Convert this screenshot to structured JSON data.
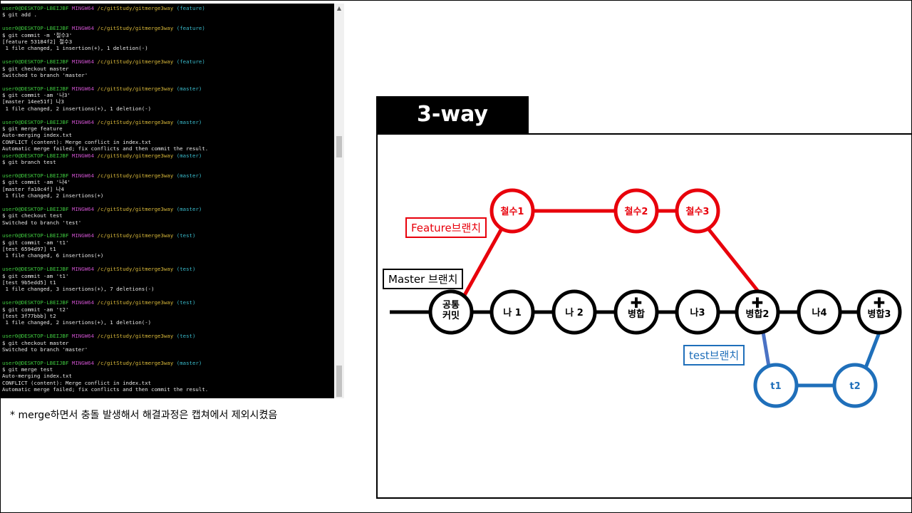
{
  "terminal": {
    "lines": [
      [
        {
          "t": "user",
          "v": "user0@DESKTOP-LBEIJBF "
        },
        {
          "t": "mingw",
          "v": "MINGW64 "
        },
        {
          "t": "path",
          "v": "/c/gitStudy/gitmerge3way "
        },
        {
          "t": "branch",
          "v": "(feature)"
        }
      ],
      [
        {
          "t": "text",
          "v": "$ git add ."
        }
      ],
      [],
      [
        {
          "t": "user",
          "v": "user0@DESKTOP-LBEIJBF "
        },
        {
          "t": "mingw",
          "v": "MINGW64 "
        },
        {
          "t": "path",
          "v": "/c/gitStudy/gitmerge3way "
        },
        {
          "t": "branch",
          "v": "(feature)"
        }
      ],
      [
        {
          "t": "text",
          "v": "$ git commit -m '철수3'"
        }
      ],
      [
        {
          "t": "text",
          "v": "[feature 53184f2] 철수3"
        }
      ],
      [
        {
          "t": "text",
          "v": " 1 file changed, 1 insertion(+), 1 deletion(-)"
        }
      ],
      [],
      [
        {
          "t": "user",
          "v": "user0@DESKTOP-LBEIJBF "
        },
        {
          "t": "mingw",
          "v": "MINGW64 "
        },
        {
          "t": "path",
          "v": "/c/gitStudy/gitmerge3way "
        },
        {
          "t": "branch",
          "v": "(feature)"
        }
      ],
      [
        {
          "t": "text",
          "v": "$ git checkout master"
        }
      ],
      [
        {
          "t": "text",
          "v": "Switched to branch 'master'"
        }
      ],
      [],
      [
        {
          "t": "user",
          "v": "user0@DESKTOP-LBEIJBF "
        },
        {
          "t": "mingw",
          "v": "MINGW64 "
        },
        {
          "t": "path",
          "v": "/c/gitStudy/gitmerge3way "
        },
        {
          "t": "branch",
          "v": "(master)"
        }
      ],
      [
        {
          "t": "text",
          "v": "$ git commit -am '나3'"
        }
      ],
      [
        {
          "t": "text",
          "v": "[master 14ee51f] 나3"
        }
      ],
      [
        {
          "t": "text",
          "v": " 1 file changed, 2 insertions(+), 1 deletion(-)"
        }
      ],
      [],
      [
        {
          "t": "user",
          "v": "user0@DESKTOP-LBEIJBF "
        },
        {
          "t": "mingw",
          "v": "MINGW64 "
        },
        {
          "t": "path",
          "v": "/c/gitStudy/gitmerge3way "
        },
        {
          "t": "branch",
          "v": "(master)"
        }
      ],
      [
        {
          "t": "text",
          "v": "$ git merge feature"
        }
      ],
      [
        {
          "t": "text",
          "v": "Auto-merging index.txt"
        }
      ],
      [
        {
          "t": "text",
          "v": "CONFLICT (content): Merge conflict in index.txt"
        }
      ],
      [
        {
          "t": "text",
          "v": "Automatic merge failed; fix conflicts and then commit the result."
        }
      ],
      [
        {
          "t": "user",
          "v": "user0@DESKTOP-LBEIJBF "
        },
        {
          "t": "mingw",
          "v": "MINGW64 "
        },
        {
          "t": "path",
          "v": "/c/gitStudy/gitmerge3way "
        },
        {
          "t": "branch",
          "v": "(master)"
        }
      ],
      [
        {
          "t": "text",
          "v": "$ git branch test"
        }
      ],
      [],
      [
        {
          "t": "user",
          "v": "user0@DESKTOP-LBEIJBF "
        },
        {
          "t": "mingw",
          "v": "MINGW64 "
        },
        {
          "t": "path",
          "v": "/c/gitStudy/gitmerge3way "
        },
        {
          "t": "branch",
          "v": "(master)"
        }
      ],
      [
        {
          "t": "text",
          "v": "$ git commit -am '나4'"
        }
      ],
      [
        {
          "t": "text",
          "v": "[master fa10c4f] 나4"
        }
      ],
      [
        {
          "t": "text",
          "v": " 1 file changed, 2 insertions(+)"
        }
      ],
      [],
      [
        {
          "t": "user",
          "v": "user0@DESKTOP-LBEIJBF "
        },
        {
          "t": "mingw",
          "v": "MINGW64 "
        },
        {
          "t": "path",
          "v": "/c/gitStudy/gitmerge3way "
        },
        {
          "t": "branch",
          "v": "(master)"
        }
      ],
      [
        {
          "t": "text",
          "v": "$ git checkout test"
        }
      ],
      [
        {
          "t": "text",
          "v": "Switched to branch 'test'"
        }
      ],
      [],
      [
        {
          "t": "user",
          "v": "user0@DESKTOP-LBEIJBF "
        },
        {
          "t": "mingw",
          "v": "MINGW64 "
        },
        {
          "t": "path",
          "v": "/c/gitStudy/gitmerge3way "
        },
        {
          "t": "branch",
          "v": "(test)"
        }
      ],
      [
        {
          "t": "text",
          "v": "$ git commit -am 't1'"
        }
      ],
      [
        {
          "t": "text",
          "v": "[test 6594d97] t1"
        }
      ],
      [
        {
          "t": "text",
          "v": " 1 file changed, 6 insertions(+)"
        }
      ],
      [],
      [
        {
          "t": "user",
          "v": "user0@DESKTOP-LBEIJBF "
        },
        {
          "t": "mingw",
          "v": "MINGW64 "
        },
        {
          "t": "path",
          "v": "/c/gitStudy/gitmerge3way "
        },
        {
          "t": "branch",
          "v": "(test)"
        }
      ],
      [
        {
          "t": "text",
          "v": "$ git commit -am 't1'"
        }
      ],
      [
        {
          "t": "text",
          "v": "[test 9b5edd5] t1"
        }
      ],
      [
        {
          "t": "text",
          "v": " 1 file changed, 3 insertions(+), 7 deletions(-)"
        }
      ],
      [],
      [
        {
          "t": "user",
          "v": "user0@DESKTOP-LBEIJBF "
        },
        {
          "t": "mingw",
          "v": "MINGW64 "
        },
        {
          "t": "path",
          "v": "/c/gitStudy/gitmerge3way "
        },
        {
          "t": "branch",
          "v": "(test)"
        }
      ],
      [
        {
          "t": "text",
          "v": "$ git commit -am 't2'"
        }
      ],
      [
        {
          "t": "text",
          "v": "[test 3f77bbb] t2"
        }
      ],
      [
        {
          "t": "text",
          "v": " 1 file changed, 2 insertions(+), 1 deletion(-)"
        }
      ],
      [],
      [
        {
          "t": "user",
          "v": "user0@DESKTOP-LBEIJBF "
        },
        {
          "t": "mingw",
          "v": "MINGW64 "
        },
        {
          "t": "path",
          "v": "/c/gitStudy/gitmerge3way "
        },
        {
          "t": "branch",
          "v": "(test)"
        }
      ],
      [
        {
          "t": "text",
          "v": "$ git checkout master"
        }
      ],
      [
        {
          "t": "text",
          "v": "Switched to branch 'master'"
        }
      ],
      [],
      [
        {
          "t": "user",
          "v": "user0@DESKTOP-LBEIJBF "
        },
        {
          "t": "mingw",
          "v": "MINGW64 "
        },
        {
          "t": "path",
          "v": "/c/gitStudy/gitmerge3way "
        },
        {
          "t": "branch",
          "v": "(master)"
        }
      ],
      [
        {
          "t": "text",
          "v": "$ git merge test"
        }
      ],
      [
        {
          "t": "text",
          "v": "Auto-merging index.txt"
        }
      ],
      [
        {
          "t": "text",
          "v": "CONFLICT (content): Merge conflict in index.txt"
        }
      ],
      [
        {
          "t": "text",
          "v": "Automatic merge failed; fix conflicts and then commit the result."
        }
      ]
    ],
    "scroll_up_icon": "chevron-up-icon"
  },
  "footnote": "* merge하면서 충돌 발생해서 해결과정은 캡쳐에서 제외시켰음",
  "diagram": {
    "title": "3-way",
    "labels": {
      "feature": "Feature브랜치",
      "master": "Master 브랜치",
      "test": "test브랜치"
    },
    "colors": {
      "master": "#000000",
      "feature": "#e8000b",
      "test": "#1f6fba",
      "test_link": "#4a72c4"
    },
    "nodes": {
      "common": [
        "공통",
        "커밋"
      ],
      "m1": "나 1",
      "m2": "나 2",
      "merge1": "병합",
      "m3": "나3",
      "merge2": "병합2",
      "m4": "나4",
      "merge3": "병합3",
      "f1": "철수1",
      "f2": "철수2",
      "f3": "철수3",
      "t1": "t1",
      "t2": "t2"
    },
    "merge_icon": "plus-icon"
  }
}
